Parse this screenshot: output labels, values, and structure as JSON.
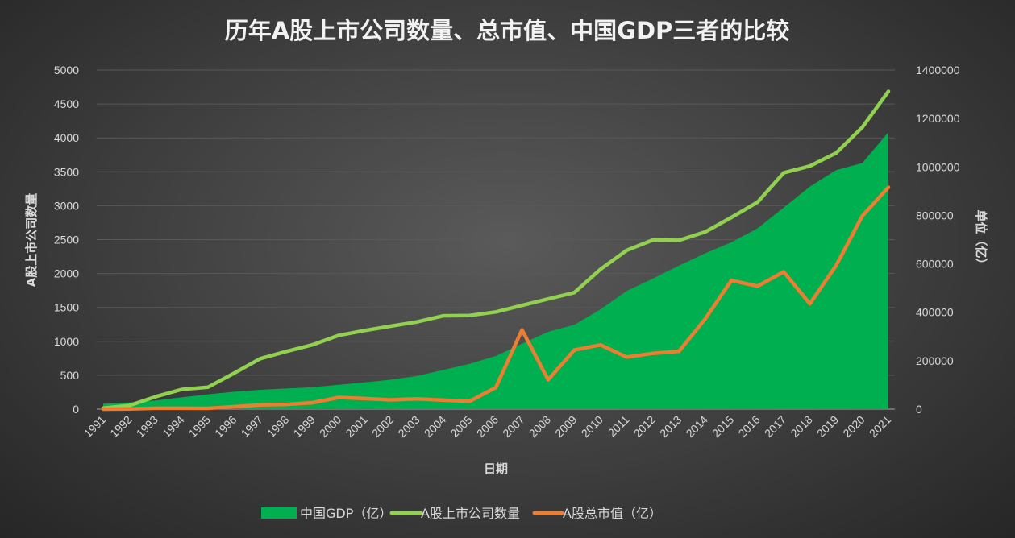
{
  "chart_data": {
    "type": "line",
    "title": "历年A股上市公司数量、总市值、中国GDP三者的比较",
    "xlabel": "日期",
    "ylabel_left": "A股上市公司数量",
    "ylabel_right": "单位（亿）",
    "ylim_left": [
      0,
      5000
    ],
    "ylim_right": [
      0,
      1400000
    ],
    "yticks_left": [
      0,
      500,
      1000,
      1500,
      2000,
      2500,
      3000,
      3500,
      4000,
      4500,
      5000
    ],
    "yticks_right": [
      0,
      200000,
      400000,
      600000,
      800000,
      1000000,
      1200000,
      1400000
    ],
    "grid": true,
    "legend": "bottom",
    "categories": [
      "1991",
      "1992",
      "1993",
      "1994",
      "1995",
      "1996",
      "1997",
      "1998",
      "1999",
      "2000",
      "2001",
      "2002",
      "2003",
      "2004",
      "2005",
      "2006",
      "2007",
      "2008",
      "2009",
      "2010",
      "2011",
      "2012",
      "2013",
      "2014",
      "2015",
      "2016",
      "2017",
      "2018",
      "2019",
      "2020",
      "2021"
    ],
    "series": [
      {
        "name": "中国GDP（亿）",
        "type": "area",
        "axis": "right",
        "color": "#00b050",
        "values": [
          22006,
          27195,
          35673,
          48637,
          61340,
          71814,
          79715,
          85196,
          90564,
          100280,
          110863,
          121717,
          137422,
          161840,
          187319,
          219439,
          270092,
          319245,
          348518,
          412119,
          487940,
          538580,
          592963,
          643563,
          688858,
          746395,
          832036,
          919281,
          986515,
          1015986,
          1143670
        ]
      },
      {
        "name": "A股上市公司数量",
        "type": "line",
        "axis": "left",
        "color": "#92d050",
        "values": [
          14,
          53,
          183,
          291,
          323,
          530,
          745,
          851,
          949,
          1088,
          1160,
          1224,
          1287,
          1377,
          1381,
          1434,
          1530,
          1625,
          1718,
          2063,
          2342,
          2494,
          2489,
          2613,
          2827,
          3052,
          3485,
          3584,
          3777,
          4154,
          4685
        ]
      },
      {
        "name": "A股总市值（亿）",
        "type": "line",
        "axis": "right",
        "color": "#ed7d31",
        "values": [
          109,
          1048,
          3531,
          3691,
          3474,
          9842,
          17529,
          19506,
          26471,
          48091,
          43522,
          38329,
          42458,
          37056,
          32430,
          89404,
          327141,
          121366,
          243939,
          265423,
          214758,
          230358,
          239077,
          372547,
          531304,
          507686,
          567086,
          434924,
          592935,
          797238,
          916088
        ]
      }
    ]
  }
}
